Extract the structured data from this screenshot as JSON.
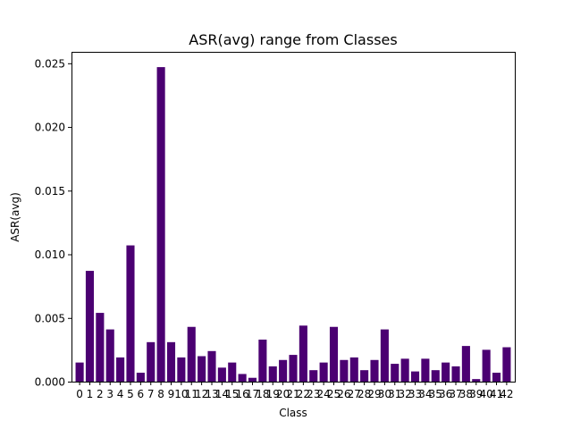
{
  "chart_data": {
    "type": "bar",
    "title": "ASR(avg) range from Classes",
    "xlabel": "Class",
    "ylabel": "ASR(avg)",
    "categories": [
      "0",
      "1",
      "2",
      "3",
      "4",
      "5",
      "6",
      "7",
      "8",
      "9",
      "10",
      "11",
      "12",
      "13",
      "14",
      "15",
      "16",
      "17",
      "18",
      "19",
      "20",
      "21",
      "22",
      "23",
      "24",
      "25",
      "26",
      "27",
      "28",
      "29",
      "30",
      "31",
      "32",
      "33",
      "34",
      "35",
      "36",
      "37",
      "38",
      "39",
      "40",
      "41",
      "42"
    ],
    "values": [
      0.0015,
      0.0087,
      0.0054,
      0.0041,
      0.0019,
      0.0107,
      0.0007,
      0.0031,
      0.0247,
      0.0031,
      0.0019,
      0.0043,
      0.002,
      0.0024,
      0.0011,
      0.0015,
      0.0006,
      0.0003,
      0.0033,
      0.0012,
      0.0017,
      0.0021,
      0.0044,
      0.0009,
      0.0015,
      0.0043,
      0.0017,
      0.0019,
      0.0009,
      0.0017,
      0.0041,
      0.0014,
      0.0018,
      0.0008,
      0.0018,
      0.0009,
      0.0015,
      0.0012,
      0.0028,
      0.0002,
      0.0025,
      0.0007,
      0.0027
    ],
    "ylim": [
      0,
      0.0259
    ],
    "yticks": [
      "0.000",
      "0.005",
      "0.010",
      "0.015",
      "0.020",
      "0.025"
    ],
    "ytick_values": [
      0,
      0.005,
      0.01,
      0.015,
      0.02,
      0.025
    ],
    "bar_color": "#4b0072",
    "grid": false,
    "legend": "none"
  }
}
